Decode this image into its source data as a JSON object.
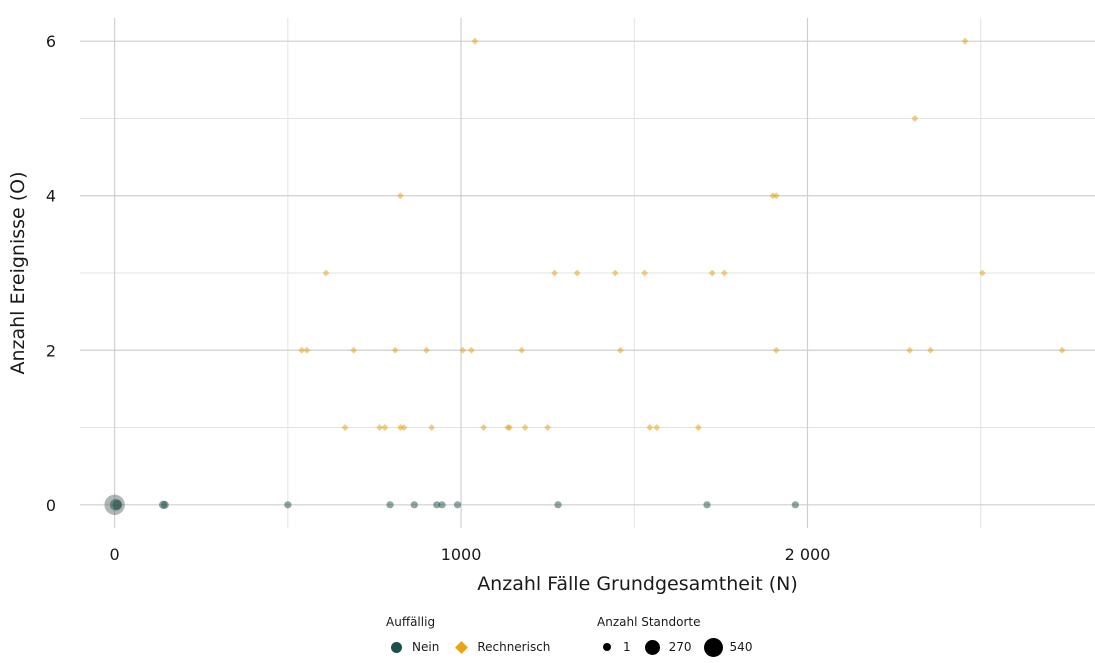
{
  "chart_data": {
    "type": "scatter",
    "xlabel": "Anzahl Fälle Grundgesamtheit (N)",
    "ylabel": "Anzahl Ereignisse (O)",
    "xlim": [
      -100,
      2830
    ],
    "ylim": [
      -0.3,
      6.3
    ],
    "x_ticks": [
      0,
      1000,
      2000
    ],
    "x_tick_labels": [
      "0",
      "1000",
      "2 000"
    ],
    "y_ticks": [
      0,
      2,
      4,
      6
    ],
    "y_tick_labels": [
      "0",
      "2",
      "4",
      "6"
    ],
    "grid": true,
    "legend_position": "bottom",
    "colors": {
      "Nein": "#1d4f4a",
      "Rechnerisch": "#e8a317"
    },
    "legend": {
      "color_title": "Auffällig",
      "color_items": [
        "Nein",
        "Rechnerisch"
      ],
      "size_title": "Anzahl Standorte",
      "size_items": [
        "1",
        "270",
        "540"
      ],
      "size_values": [
        1,
        270,
        540
      ]
    },
    "series": [
      {
        "name": "Nein",
        "marker": "circle",
        "points": [
          {
            "x": 0,
            "y": 0,
            "n": 540
          },
          {
            "x": 3,
            "y": 0,
            "n": 60
          },
          {
            "x": 8,
            "y": 0,
            "n": 20
          },
          {
            "x": 140,
            "y": 0,
            "n": 5
          },
          {
            "x": 145,
            "y": 0,
            "n": 2
          },
          {
            "x": 500,
            "y": 0,
            "n": 1
          },
          {
            "x": 795,
            "y": 0,
            "n": 1
          },
          {
            "x": 865,
            "y": 0,
            "n": 1
          },
          {
            "x": 930,
            "y": 0,
            "n": 1
          },
          {
            "x": 945,
            "y": 0,
            "n": 1
          },
          {
            "x": 990,
            "y": 0,
            "n": 1
          },
          {
            "x": 1280,
            "y": 0,
            "n": 1
          },
          {
            "x": 1710,
            "y": 0,
            "n": 1
          },
          {
            "x": 1965,
            "y": 0,
            "n": 1
          }
        ]
      },
      {
        "name": "Rechnerisch",
        "marker": "diamond",
        "points": [
          {
            "x": 1040,
            "y": 6
          },
          {
            "x": 2455,
            "y": 6
          },
          {
            "x": 2310,
            "y": 5
          },
          {
            "x": 825,
            "y": 4
          },
          {
            "x": 1900,
            "y": 4
          },
          {
            "x": 1910,
            "y": 4
          },
          {
            "x": 610,
            "y": 3
          },
          {
            "x": 1270,
            "y": 3
          },
          {
            "x": 1335,
            "y": 3
          },
          {
            "x": 1445,
            "y": 3
          },
          {
            "x": 1530,
            "y": 3
          },
          {
            "x": 1725,
            "y": 3
          },
          {
            "x": 1760,
            "y": 3
          },
          {
            "x": 2505,
            "y": 3
          },
          {
            "x": 540,
            "y": 2
          },
          {
            "x": 555,
            "y": 2
          },
          {
            "x": 690,
            "y": 2
          },
          {
            "x": 810,
            "y": 2
          },
          {
            "x": 900,
            "y": 2
          },
          {
            "x": 1005,
            "y": 2
          },
          {
            "x": 1030,
            "y": 2
          },
          {
            "x": 1175,
            "y": 2
          },
          {
            "x": 1460,
            "y": 2
          },
          {
            "x": 1910,
            "y": 2
          },
          {
            "x": 2295,
            "y": 2
          },
          {
            "x": 2355,
            "y": 2
          },
          {
            "x": 2735,
            "y": 2
          },
          {
            "x": 665,
            "y": 1
          },
          {
            "x": 765,
            "y": 1
          },
          {
            "x": 780,
            "y": 1
          },
          {
            "x": 825,
            "y": 1
          },
          {
            "x": 835,
            "y": 1
          },
          {
            "x": 915,
            "y": 1
          },
          {
            "x": 1065,
            "y": 1
          },
          {
            "x": 1135,
            "y": 1
          },
          {
            "x": 1140,
            "y": 1
          },
          {
            "x": 1185,
            "y": 1
          },
          {
            "x": 1250,
            "y": 1
          },
          {
            "x": 1545,
            "y": 1
          },
          {
            "x": 1565,
            "y": 1
          },
          {
            "x": 1685,
            "y": 1
          }
        ]
      }
    ]
  }
}
